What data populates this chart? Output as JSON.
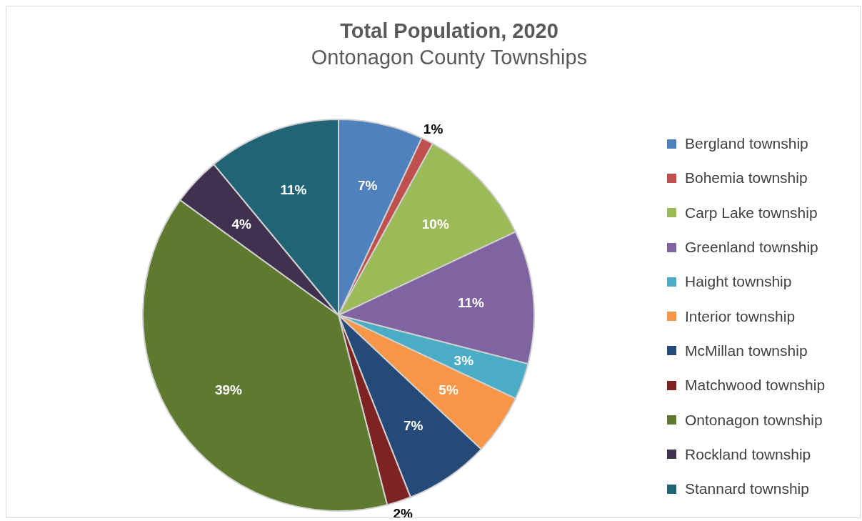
{
  "chart_data": {
    "type": "pie",
    "title": "Total Population, 2020",
    "subtitle": "Ontonagon County Townships",
    "categories": [
      "Bergland township",
      "Bohemia township",
      "Carp Lake township",
      "Greenland township",
      "Haight township",
      "Interior township",
      "McMillan township",
      "Matchwood township",
      "Ontonagon township",
      "Rockland township",
      "Stannard township"
    ],
    "values": [
      7,
      1,
      10,
      11,
      3,
      5,
      7,
      2,
      39,
      4,
      11
    ],
    "value_labels": [
      "7%",
      "1%",
      "10%",
      "11%",
      "3%",
      "5%",
      "7%",
      "2%",
      "39%",
      "4%",
      "11%"
    ],
    "colors": [
      "#4f81bd",
      "#c0504d",
      "#9bbb59",
      "#8064a2",
      "#4bacc6",
      "#f79646",
      "#254a77",
      "#7f2222",
      "#5e7a2e",
      "#40314f",
      "#216476"
    ],
    "legend": "right"
  }
}
